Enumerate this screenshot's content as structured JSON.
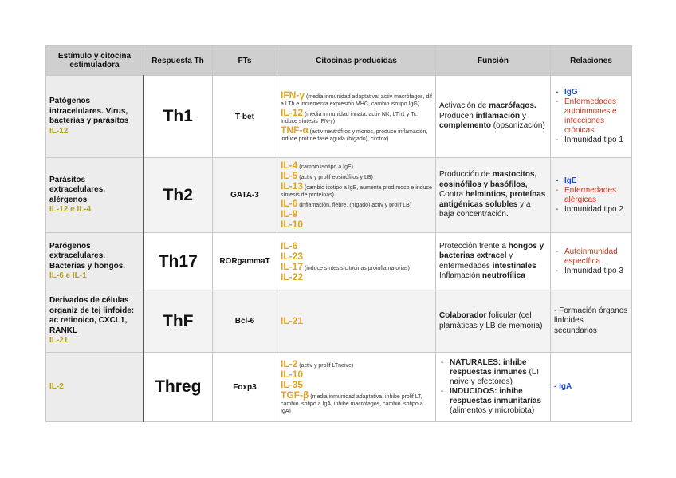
{
  "headers": [
    "Estímulo y citocina estimuladora",
    "Respuesta Th",
    "FTs",
    "Citocinas producidas",
    "Función",
    "Relaciones"
  ],
  "rows": [
    {
      "stimulus": "Patógenos intracelulares. Virus, bacterias y parásitos",
      "stim_il": "IL-12",
      "th": "Th1",
      "ft": "T-bet",
      "cytokines": [
        {
          "name": "IFN-γ",
          "note": "(media inmunidad adaptativa: activ macrófagos, dif a LTh e incrementa expresión MHC, cambio isotipo IgG)"
        },
        {
          "name": "IL-12",
          "note": "(media inmunidad innata: activ NK, LTh1 y Tc. Induce síntesis IFN-γ)"
        },
        {
          "name": "TNF-α",
          "note": "(activ neutrófilos y monos, produce inflamación, induce prot de fase aguda (hígado), citotox)"
        }
      ],
      "function": "Activación de macrófagos. Producen inflamación y complemento (opsonización)",
      "relations": [
        {
          "text": "IgG",
          "style": "blue"
        },
        {
          "text": "Enfermedades autoinmunes e infecciones crónicas",
          "style": "red"
        },
        {
          "text": "Inmunidad tipo 1",
          "style": "plain"
        }
      ]
    },
    {
      "stimulus": "Parásitos extracelulares, alérgenos",
      "stim_il": "IL-12 e IL-4",
      "th": "Th2",
      "ft": "GATA-3",
      "cytokines": [
        {
          "name": "IL-4",
          "note": "(cambio isotipo a IgE)"
        },
        {
          "name": "IL-5",
          "note": "(activ y prolif eosinófilos y LB)"
        },
        {
          "name": "IL-13",
          "note": "(cambio isotipo a IgE, aumenta prod moco e induce síntesis de proteínas)"
        },
        {
          "name": "IL-6",
          "note": "(inflamación, fiebre, (hígado) activ y prolif LB)"
        },
        {
          "name": "IL-9",
          "note": ""
        },
        {
          "name": "IL-10",
          "note": ""
        }
      ],
      "function": "Producción de mastocitos, eosinófilos y basófilos, Contra helmintios, proteínas antigénicas solubles y a baja concentración.",
      "relations": [
        {
          "text": "IgE",
          "style": "blue"
        },
        {
          "text": "Enfermedades alérgicas",
          "style": "red"
        },
        {
          "text": "Inmunidad tipo 2",
          "style": "plain"
        }
      ]
    },
    {
      "stimulus": "Parógenos extracelulares. Bacterias y hongos.",
      "stim_il": "IL-6 e IL-1",
      "th": "Th17",
      "ft": "RORgammaT",
      "cytokines": [
        {
          "name": "IL-6",
          "note": ""
        },
        {
          "name": "IL-23",
          "note": ""
        },
        {
          "name": "IL-17",
          "note": "(induce síntesis citocinas proinflamatorias)"
        },
        {
          "name": "IL-22",
          "note": ""
        }
      ],
      "function": "Protección frente a hongos y bacterias extracel y enfermedades intestinales Inflamación neutrofílica",
      "relations": [
        {
          "text": "Autoinmunidad específica",
          "style": "red"
        },
        {
          "text": "Inmunidad tipo 3",
          "style": "plain"
        }
      ]
    },
    {
      "stimulus": "Derivados de células organiz de tej linfoide: ac retinoico, CXCL1, RANKL",
      "stim_il": "IL-21",
      "th": "ThF",
      "ft": "Bcl-6",
      "cytokines": [
        {
          "name": "IL-21",
          "note": ""
        }
      ],
      "function": "Colaborador folicular (cel plamáticas y LB de memoria)",
      "relations_text": "- Formación órganos linfoides secundarios"
    },
    {
      "stimulus": "",
      "stim_il": "IL-2",
      "th": "Threg",
      "ft": "Foxp3",
      "cytokines": [
        {
          "name": "IL-2",
          "note": "(activ y prolif LTnaive)"
        },
        {
          "name": "IL-10",
          "note": ""
        },
        {
          "name": "IL-35",
          "note": ""
        },
        {
          "name": "TGF-β",
          "note": "(media inmunidad adaptativa, inhibe prolif LT, cambio isotipo a IgA, inhibe macrófagos, cambio isotipo a IgA)"
        }
      ],
      "function_list": [
        "NATURALES: inhibe respuestas inmunes (LT naive y efectores)",
        "INDUCIDOS: inhibe respuestas inmunitarias (alimentos y microbiota)"
      ],
      "relations_text": "- IgA"
    }
  ],
  "colors": {
    "cytokine": "#e0a520",
    "stim_il": "#b3a01e",
    "blue": "#1a4fc4",
    "red": "#d2301e"
  }
}
